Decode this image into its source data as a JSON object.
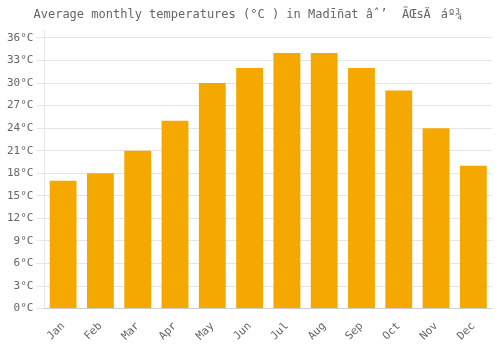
{
  "chart_data": {
    "type": "bar",
    "title": "Average monthly temperatures (°C ) in Madī̄nat âˆ’  ÃŒsÄáº¾",
    "categories": [
      "Jan",
      "Feb",
      "Mar",
      "Apr",
      "May",
      "Jun",
      "Jul",
      "Aug",
      "Sep",
      "Oct",
      "Nov",
      "Dec"
    ],
    "values": [
      17,
      18,
      21,
      25,
      30,
      32,
      34,
      34,
      32,
      29,
      24,
      19
    ],
    "color": "#F5A800",
    "ylim": [
      0,
      37
    ],
    "yticks": [
      {
        "value": 0,
        "label": "0°C"
      },
      {
        "value": 3,
        "label": "3°C"
      },
      {
        "value": 6,
        "label": "6°C"
      },
      {
        "value": 9,
        "label": "9°C"
      },
      {
        "value": 12,
        "label": "12°C"
      },
      {
        "value": 15,
        "label": "15°C"
      },
      {
        "value": 18,
        "label": "18°C"
      },
      {
        "value": 21,
        "label": "21°C"
      },
      {
        "value": 24,
        "label": "24°C"
      },
      {
        "value": 27,
        "label": "27°C"
      },
      {
        "value": 30,
        "label": "30°C"
      },
      {
        "value": 33,
        "label": "33°C"
      },
      {
        "value": 36,
        "label": "36°C"
      }
    ],
    "grid": true
  }
}
